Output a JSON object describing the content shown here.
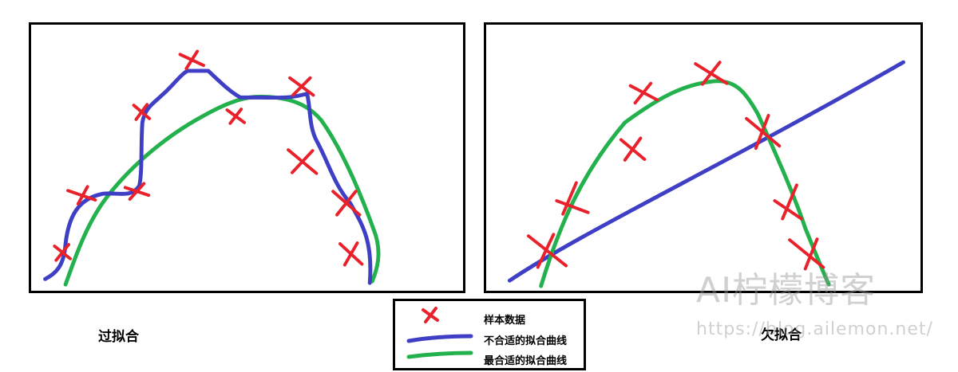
{
  "captions": {
    "left": "过拟合",
    "right": "欠拟合"
  },
  "legend": {
    "sample": "样本数据",
    "bad_fit": "不合适的拟合曲线",
    "best_fit": "最合适的拟合曲线"
  },
  "watermark": {
    "title": "AI柠檬博客",
    "url": "https://blog.ailemon.net/"
  },
  "colors": {
    "sample_marker": "#e8212a",
    "bad_fit_curve": "#3f3fc6",
    "best_fit_curve": "#22b14c",
    "frame": "#000000"
  }
}
